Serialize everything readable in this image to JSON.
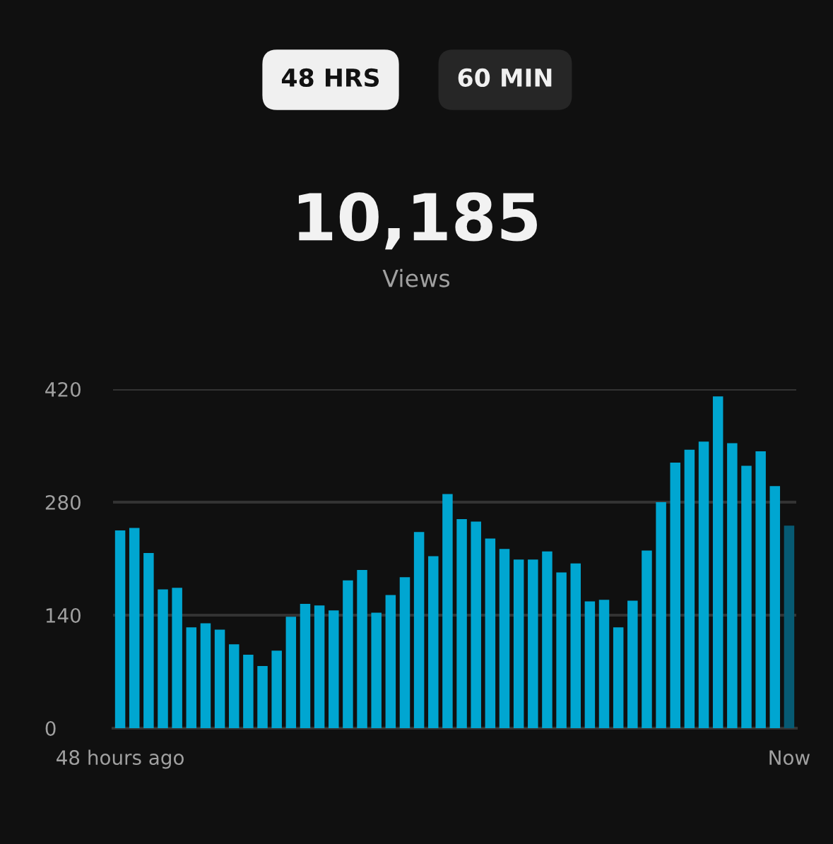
{
  "chart_data": {
    "type": "bar",
    "title": "10,185",
    "subtitle": "Views",
    "annotations": [
      "48 HRS",
      "60 MIN"
    ],
    "categories": [
      "48 hours ago",
      null,
      null,
      null,
      null,
      null,
      null,
      null,
      null,
      null,
      null,
      null,
      null,
      null,
      null,
      null,
      null,
      null,
      null,
      null,
      null,
      null,
      null,
      null,
      null,
      null,
      null,
      null,
      null,
      null,
      null,
      null,
      null,
      null,
      null,
      null,
      null,
      null,
      null,
      null,
      null,
      null,
      null,
      null,
      null,
      null,
      null,
      "Now"
    ],
    "values": [
      245,
      248,
      217,
      172,
      174,
      125,
      130,
      122,
      104,
      91,
      77,
      96,
      138,
      154,
      152,
      146,
      183,
      196,
      143,
      165,
      187,
      243,
      213,
      290,
      259,
      256,
      235,
      222,
      209,
      209,
      219,
      193,
      204,
      157,
      159,
      125,
      158,
      220,
      280,
      329,
      345,
      355,
      411,
      353,
      325,
      343,
      300,
      251
    ],
    "colors": [
      "#00a6d1",
      "#00a6d1",
      "#00a6d1",
      "#00a6d1",
      "#00a6d1",
      "#00a6d1",
      "#00a6d1",
      "#00a6d1",
      "#00a6d1",
      "#00a6d1",
      "#00a6d1",
      "#00a6d1",
      "#00a6d1",
      "#00a6d1",
      "#00a6d1",
      "#00a6d1",
      "#00a6d1",
      "#00a6d1",
      "#00a6d1",
      "#00a6d1",
      "#00a6d1",
      "#00a6d1",
      "#00a6d1",
      "#00a6d1",
      "#00a6d1",
      "#00a6d1",
      "#00a6d1",
      "#00a6d1",
      "#00a6d1",
      "#00a6d1",
      "#00a6d1",
      "#00a6d1",
      "#00a6d1",
      "#00a6d1",
      "#00a6d1",
      "#00a6d1",
      "#00a6d1",
      "#00a6d1",
      "#00a6d1",
      "#00a6d1",
      "#00a6d1",
      "#00a6d1",
      "#00a6d1",
      "#00a6d1",
      "#00a6d1",
      "#00a6d1",
      "#00a6d1",
      "#065a73"
    ],
    "ylim": [
      0,
      420
    ],
    "yticks": [
      0,
      140,
      280,
      420
    ],
    "grid": "y"
  }
}
